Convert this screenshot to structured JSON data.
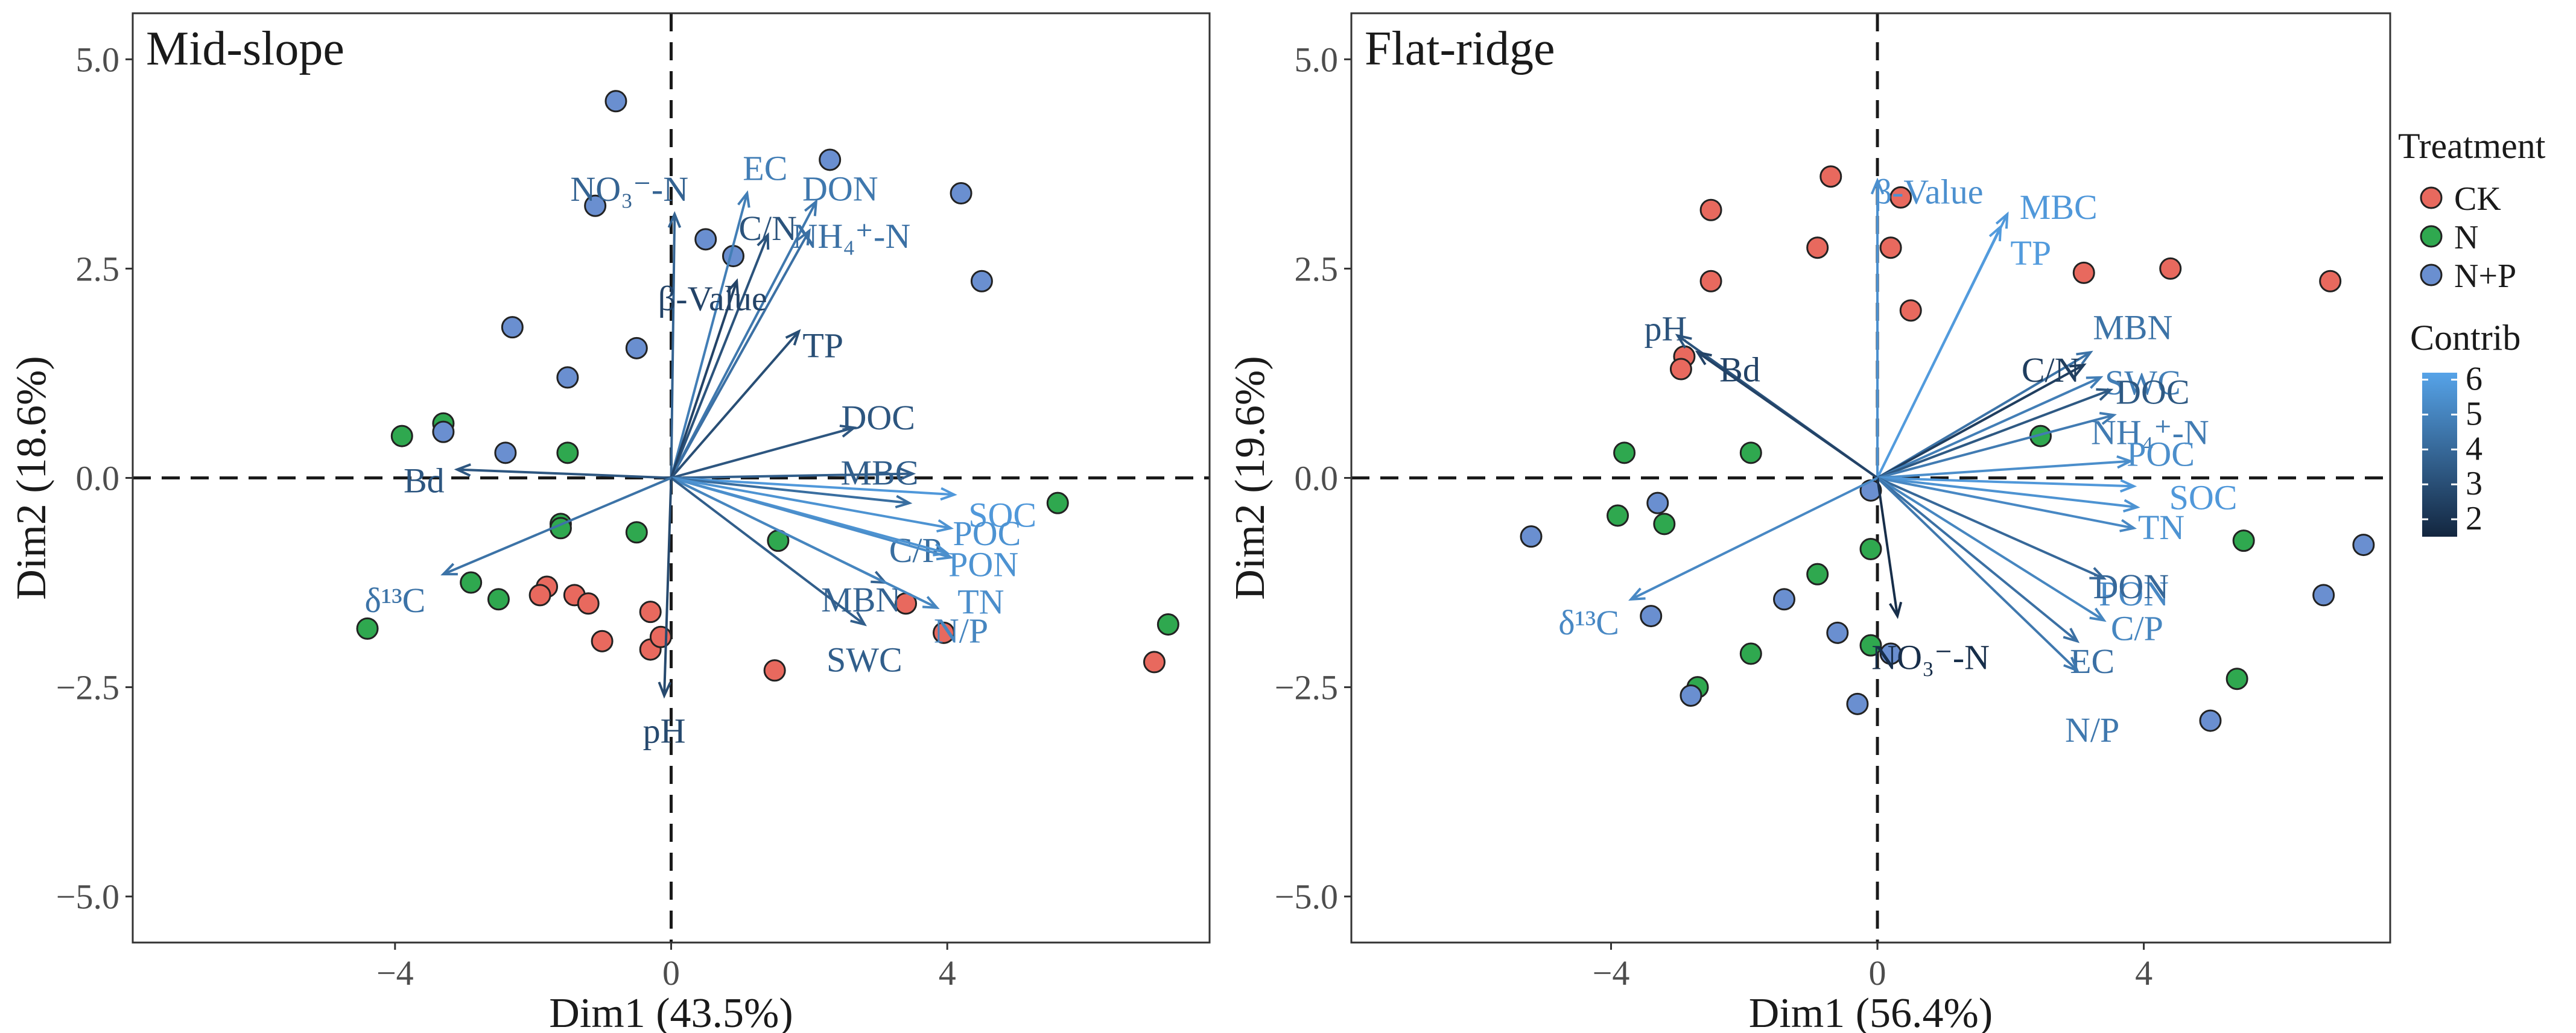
{
  "legend": {
    "treatment_title": "Treatment",
    "treatments": [
      {
        "label": "CK",
        "color": "#E8695E"
      },
      {
        "label": "N",
        "color": "#2FA84F"
      },
      {
        "label": "N+P",
        "color": "#6A8FD0"
      }
    ],
    "contrib_title": "Contrib",
    "contrib_ticks": [
      "6",
      "5",
      "4",
      "3",
      "2"
    ],
    "contrib_range": [
      1.5,
      6.2
    ],
    "contrib_colors": {
      "low": "#13263F",
      "high": "#56A3E8"
    }
  },
  "chart_data": [
    {
      "type": "scatter",
      "title": "Mid-slope",
      "xlabel": "Dim1 (43.5%)",
      "ylabel": "Dim2 (18.6%)",
      "xlim": [
        -7.8,
        7.8
      ],
      "ylim": [
        -5.55,
        5.55
      ],
      "xticks": [
        -4,
        0,
        4
      ],
      "xtick_labels": [
        "−4",
        "0",
        "4"
      ],
      "yticks": [
        5.0,
        2.5,
        0.0,
        -2.5,
        -5.0
      ],
      "ytick_labels": [
        "5.0",
        "2.5",
        "0.0",
        "−2.5",
        "−5.0"
      ],
      "points": {
        "CK": [
          [
            -1.8,
            -1.3
          ],
          [
            -1.9,
            -1.4
          ],
          [
            -1.4,
            -1.4
          ],
          [
            -1.2,
            -1.5
          ],
          [
            -1.0,
            -1.95
          ],
          [
            -0.3,
            -2.05
          ],
          [
            -0.3,
            -1.6
          ],
          [
            -0.15,
            -1.9
          ],
          [
            1.5,
            -2.3
          ],
          [
            3.4,
            -1.5
          ],
          [
            3.95,
            -1.85
          ],
          [
            7.0,
            -2.2
          ]
        ],
        "N": [
          [
            -3.9,
            0.5
          ],
          [
            -3.3,
            0.65
          ],
          [
            -1.5,
            0.3
          ],
          [
            -1.6,
            -0.55
          ],
          [
            -1.6,
            -0.6
          ],
          [
            -0.5,
            -0.65
          ],
          [
            -2.9,
            -1.25
          ],
          [
            -2.5,
            -1.45
          ],
          [
            -4.4,
            -1.8
          ],
          [
            1.55,
            -0.75
          ],
          [
            5.6,
            -0.3
          ],
          [
            7.2,
            -1.75
          ]
        ],
        "N+P": [
          [
            -0.8,
            4.5
          ],
          [
            -1.1,
            3.25
          ],
          [
            0.5,
            2.85
          ],
          [
            0.9,
            2.65
          ],
          [
            2.3,
            3.8
          ],
          [
            4.2,
            3.4
          ],
          [
            4.5,
            2.35
          ],
          [
            -2.3,
            1.8
          ],
          [
            -0.5,
            1.55
          ],
          [
            -1.5,
            1.2
          ],
          [
            -3.3,
            0.55
          ],
          [
            -2.4,
            0.3
          ]
        ]
      },
      "vectors": [
        {
          "name": "EC",
          "x": 1.1,
          "y": 3.4,
          "contrib": 4.8
        },
        {
          "name": "NO₃⁻-N",
          "x": 0.05,
          "y": 3.15,
          "contrib": 3.8
        },
        {
          "name": "DON",
          "x": 2.1,
          "y": 3.3,
          "contrib": 4.6
        },
        {
          "name": "C/N",
          "x": 1.4,
          "y": 2.9,
          "contrib": 3.2
        },
        {
          "name": "NH₄⁺-N",
          "x": 2.0,
          "y": 2.95,
          "contrib": 4.3
        },
        {
          "name": "β-Value",
          "x": 0.95,
          "y": 2.35,
          "contrib": 2.6
        },
        {
          "name": "TP",
          "x": 1.85,
          "y": 1.75,
          "contrib": 3.0
        },
        {
          "name": "DOC",
          "x": 2.65,
          "y": 0.6,
          "contrib": 3.3
        },
        {
          "name": "MBC",
          "x": 3.5,
          "y": 0.05,
          "contrib": 3.6
        },
        {
          "name": "SOC",
          "x": 4.1,
          "y": -0.2,
          "contrib": 5.8
        },
        {
          "name": "C/P",
          "x": 3.45,
          "y": -0.3,
          "contrib": 4.2
        },
        {
          "name": "POC",
          "x": 4.05,
          "y": -0.6,
          "contrib": 5.6
        },
        {
          "name": "PON",
          "x": 4.0,
          "y": -0.9,
          "contrib": 5.6
        },
        {
          "name": "TN",
          "x": 4.05,
          "y": -0.95,
          "contrib": 5.4
        },
        {
          "name": "MBN",
          "x": 3.1,
          "y": -1.25,
          "contrib": 3.8
        },
        {
          "name": "N/P",
          "x": 3.85,
          "y": -1.55,
          "contrib": 5.1
        },
        {
          "name": "SWC",
          "x": 2.8,
          "y": -1.75,
          "contrib": 3.6
        },
        {
          "name": "pH",
          "x": -0.1,
          "y": -2.6,
          "contrib": 2.8
        },
        {
          "name": "Bd",
          "x": -3.1,
          "y": 0.1,
          "contrib": 3.3
        },
        {
          "name": "δ¹³C",
          "x": -3.3,
          "y": -1.15,
          "contrib": 4.4
        }
      ]
    },
    {
      "type": "scatter",
      "title": "Flat-ridge",
      "xlabel": "Dim1 (56.4%)",
      "ylabel": "Dim2 (19.6%)",
      "xlim": [
        -7.9,
        7.7
      ],
      "ylim": [
        -5.55,
        5.55
      ],
      "xticks": [
        -4,
        0,
        4
      ],
      "xtick_labels": [
        "−4",
        "0",
        "4"
      ],
      "yticks": [
        5.0,
        2.5,
        0.0,
        -2.5,
        -5.0
      ],
      "ytick_labels": [
        "5.0",
        "2.5",
        "0.0",
        "−2.5",
        "−5.0"
      ],
      "points": {
        "CK": [
          [
            -0.7,
            3.6
          ],
          [
            0.35,
            3.35
          ],
          [
            -2.5,
            3.2
          ],
          [
            -0.9,
            2.75
          ],
          [
            0.2,
            2.75
          ],
          [
            -2.5,
            2.35
          ],
          [
            0.5,
            2.0
          ],
          [
            3.1,
            2.45
          ],
          [
            4.4,
            2.5
          ],
          [
            6.8,
            2.35
          ],
          [
            -2.9,
            1.45
          ],
          [
            -2.95,
            1.3
          ]
        ],
        "N": [
          [
            -3.8,
            0.3
          ],
          [
            -1.9,
            0.3
          ],
          [
            -3.9,
            -0.45
          ],
          [
            -3.2,
            -0.55
          ],
          [
            -0.1,
            -0.85
          ],
          [
            -0.9,
            -1.15
          ],
          [
            5.5,
            -0.75
          ],
          [
            2.45,
            0.5
          ],
          [
            -1.9,
            -2.1
          ],
          [
            -0.1,
            -2.0
          ],
          [
            -2.7,
            -2.5
          ],
          [
            5.4,
            -2.4
          ]
        ],
        "N+P": [
          [
            -5.2,
            -0.7
          ],
          [
            -3.3,
            -0.3
          ],
          [
            -0.1,
            -0.15
          ],
          [
            -1.4,
            -1.45
          ],
          [
            -3.4,
            -1.65
          ],
          [
            -0.6,
            -1.85
          ],
          [
            0.2,
            -2.1
          ],
          [
            -2.8,
            -2.6
          ],
          [
            -0.3,
            -2.7
          ],
          [
            5.0,
            -2.9
          ],
          [
            6.7,
            -1.4
          ],
          [
            7.3,
            -0.8
          ]
        ]
      },
      "vectors": [
        {
          "name": "β-Value",
          "x": 0.0,
          "y": 3.55,
          "contrib": 5.5
        },
        {
          "name": "MBC",
          "x": 1.95,
          "y": 3.15,
          "contrib": 5.8
        },
        {
          "name": "TP",
          "x": 1.85,
          "y": 3.0,
          "contrib": 5.9
        },
        {
          "name": "pH",
          "x": -3.0,
          "y": 1.7,
          "contrib": 3.2
        },
        {
          "name": "Bd",
          "x": -2.7,
          "y": 1.5,
          "contrib": 2.6
        },
        {
          "name": "MBN",
          "x": 3.2,
          "y": 1.5,
          "contrib": 4.4
        },
        {
          "name": "C/N",
          "x": 3.1,
          "y": 1.35,
          "contrib": 2.4
        },
        {
          "name": "SWC",
          "x": 3.35,
          "y": 1.2,
          "contrib": 4.8
        },
        {
          "name": "DOC",
          "x": 3.5,
          "y": 1.05,
          "contrib": 3.4
        },
        {
          "name": "NH₄⁺-N",
          "x": 3.55,
          "y": 0.75,
          "contrib": 4.7
        },
        {
          "name": "POC",
          "x": 3.8,
          "y": 0.2,
          "contrib": 5.4
        },
        {
          "name": "SOC",
          "x": 3.85,
          "y": -0.1,
          "contrib": 5.8
        },
        {
          "name": "TN",
          "x": 3.9,
          "y": -0.35,
          "contrib": 5.6
        },
        {
          "name": "PON",
          "x": 3.85,
          "y": -0.6,
          "contrib": 5.2
        },
        {
          "name": "DON",
          "x": 3.4,
          "y": -1.2,
          "contrib": 4.0
        },
        {
          "name": "C/P",
          "x": 3.4,
          "y": -1.7,
          "contrib": 5.1
        },
        {
          "name": "EC",
          "x": 3.0,
          "y": -1.95,
          "contrib": 4.3
        },
        {
          "name": "N/P",
          "x": 3.0,
          "y": -2.3,
          "contrib": 4.6
        },
        {
          "name": "NO₃⁻-N",
          "x": 0.3,
          "y": -1.65,
          "contrib": 1.8
        },
        {
          "name": "δ¹³C",
          "x": -3.7,
          "y": -1.45,
          "contrib": 5.2
        }
      ]
    }
  ]
}
